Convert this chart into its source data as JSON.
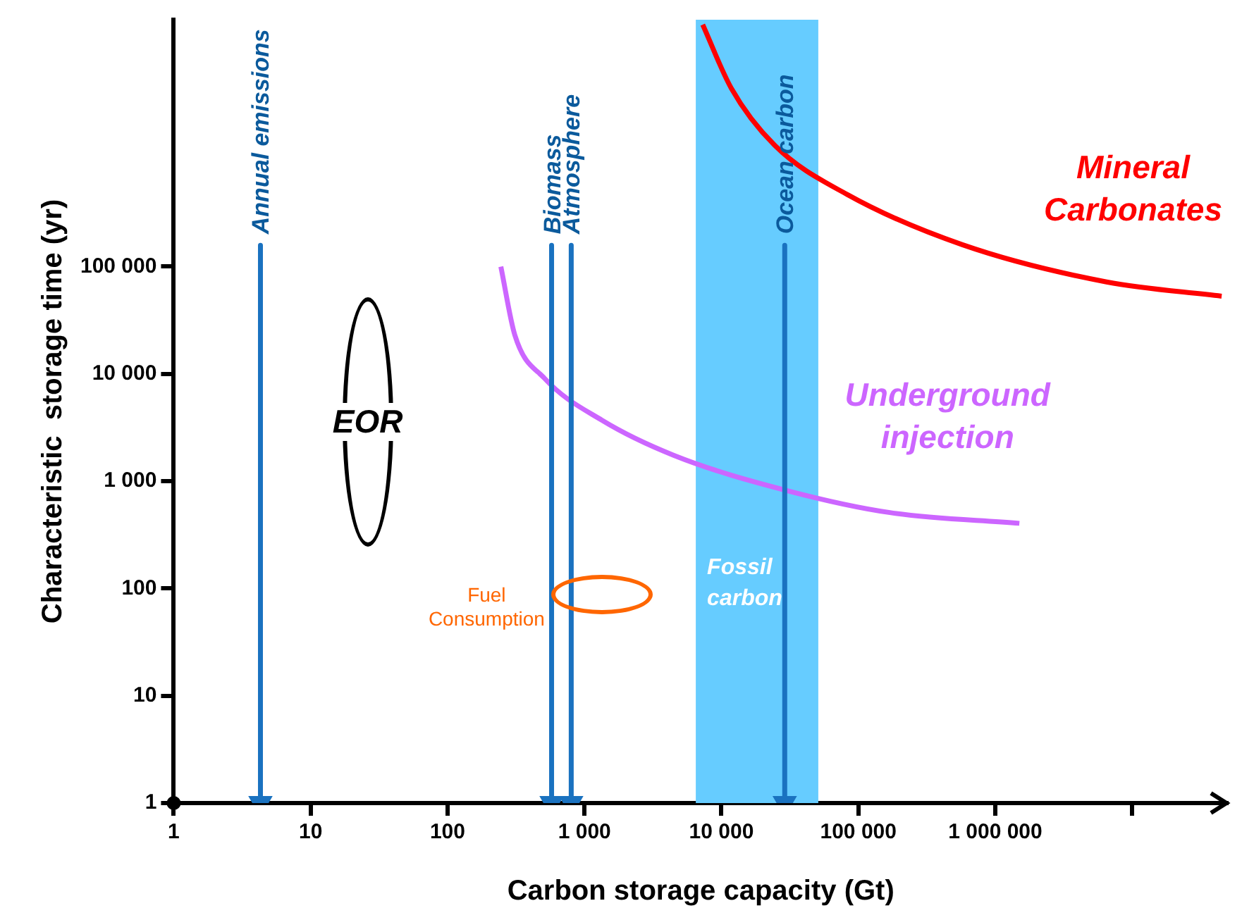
{
  "chart_data": {
    "type": "line",
    "xlabel": "Carbon storage capacity (Gt)",
    "ylabel": "Characteristic  storage time (yr)",
    "log": "xy",
    "xlim": [
      1,
      50000000
    ],
    "ylim": [
      1,
      20000000
    ],
    "xticks": [
      1,
      10,
      100,
      {
        "value": 1000,
        "label": "1 000"
      },
      {
        "value": 10000,
        "label": "10 000"
      },
      {
        "value": 100000,
        "label": "100 000"
      },
      {
        "value": 1000000,
        "label": "1 000 000"
      },
      {
        "value": 10000000,
        "label": null
      }
    ],
    "yticks": [
      1,
      10,
      100,
      {
        "value": 1000,
        "label": "1 000"
      },
      {
        "value": 10000,
        "label": "10 000"
      },
      {
        "value": 100000,
        "label": "100 000"
      }
    ],
    "bands": [
      {
        "axis": "x",
        "from": 6500,
        "to": 51000,
        "label": "Fossil carbon",
        "color": "#66ccff"
      }
    ],
    "series": [
      {
        "name": "Annual emissions",
        "color": "#1a72c0",
        "x": [
          4.3,
          4.3
        ],
        "values": [
          158000,
          1
        ]
      },
      {
        "name": "Biomass",
        "color": "#1a72c0",
        "x": [
          575,
          575
        ],
        "values": [
          158000,
          1
        ]
      },
      {
        "name": "Atmosphere",
        "color": "#1a72c0",
        "x": [
          800,
          800
        ],
        "values": [
          158000,
          1
        ]
      },
      {
        "name": "Ocean carbon",
        "color": "#1a72c0",
        "x": [
          29000,
          29000
        ],
        "values": [
          158000,
          1
        ]
      },
      {
        "name": "Mineral Carbonates",
        "color": "#ff0000",
        "x": [
          7300,
          11800,
          24500,
          83000,
          575000,
          6500000,
          45000000
        ],
        "values": [
          18000000,
          4600000,
          1350000,
          470000,
          160000,
          72000,
          53000
        ]
      },
      {
        "name": "Underground injection",
        "color": "#cc66ff",
        "x": [
          245,
          310,
          510,
          1340,
          4500,
          31000,
          170000,
          1500000
        ],
        "values": [
          100000,
          23000,
          9100,
          3700,
          1740,
          810,
          510,
          405
        ]
      }
    ],
    "annotations": [
      "EOR",
      "Fuel Consumption"
    ]
  }
}
